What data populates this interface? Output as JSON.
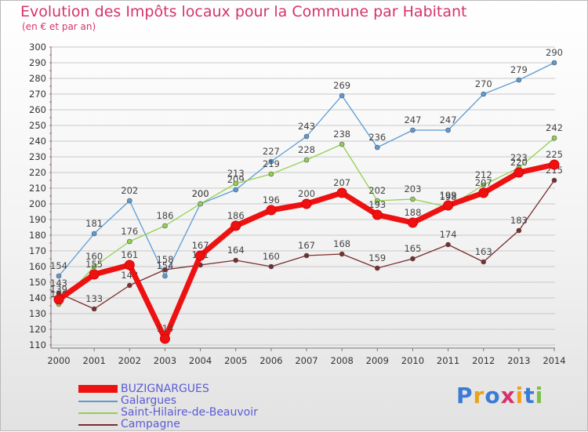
{
  "chart_data": {
    "type": "line",
    "title": "Evolution des Impôts locaux pour la Commune par Habitant",
    "subtitle": "(en € et par an)",
    "xlabel": "",
    "ylabel": "",
    "ylim": [
      110,
      300
    ],
    "yticks": [
      110,
      120,
      130,
      140,
      150,
      160,
      170,
      180,
      190,
      200,
      210,
      220,
      230,
      240,
      250,
      260,
      270,
      280,
      290,
      300
    ],
    "categories": [
      "2000",
      "2001",
      "2002",
      "2003",
      "2004",
      "2005",
      "2006",
      "2007",
      "2008",
      "2009",
      "2010",
      "2011",
      "2012",
      "2013",
      "2014"
    ],
    "series": [
      {
        "name": "Galargues",
        "color": "#5b9bd5",
        "values": [
          154,
          181,
          202,
          154,
          200,
          209,
          227,
          243,
          269,
          236,
          247,
          247,
          270,
          279,
          290
        ]
      },
      {
        "name": "Saint-Hilaire-de-Beauvoir",
        "color": "#92d050",
        "values": [
          136,
          160,
          176,
          186,
          200,
          213,
          219,
          228,
          238,
          202,
          203,
          198,
          212,
          223,
          242
        ]
      },
      {
        "name": "Campagne",
        "color": "#7b2c2c",
        "values": [
          143,
          133,
          148,
          158,
          161,
          164,
          160,
          167,
          168,
          159,
          165,
          174,
          163,
          183,
          215
        ]
      },
      {
        "name": "BUZIGNARGUES",
        "color": "#ee1111",
        "values": [
          139,
          155,
          161,
          114,
          167,
          186,
          196,
          200,
          207,
          193,
          188,
          199,
          207,
          220,
          225
        ]
      }
    ],
    "legend_order": [
      "BUZIGNARGUES",
      "Galargues",
      "Saint-Hilaire-de-Beauvoir",
      "Campagne"
    ],
    "legend_position": "bottom-left"
  },
  "logo": {
    "text": "Proxiti"
  }
}
